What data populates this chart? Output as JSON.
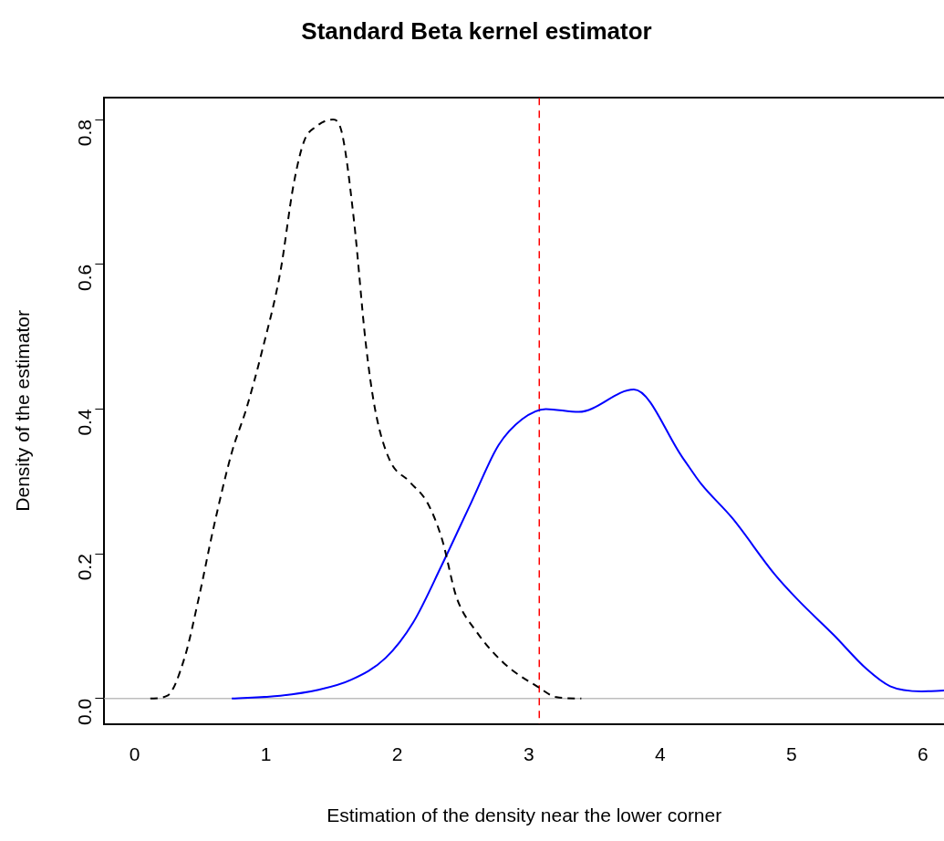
{
  "chart_data": {
    "type": "line",
    "title": "Standard Beta kernel estimator",
    "xlabel": "Estimation of the density near the lower corner",
    "ylabel": "Density of the estimator",
    "xlim": [
      -0.23,
      6.16
    ],
    "ylim": [
      -0.035,
      0.83
    ],
    "xticks": [
      0,
      1,
      2,
      3,
      4,
      5,
      6
    ],
    "yticks": [
      {
        "value": 0,
        "label": "0.0"
      },
      0.2,
      0.4,
      0.6,
      0.8
    ],
    "grid": false,
    "legend": false,
    "marker": "none",
    "series": [
      {
        "color": "#000000",
        "line_style": "dashed",
        "x": [
          0.12,
          0.25,
          0.38,
          0.49,
          0.6,
          0.74,
          0.85,
          0.97,
          1.11,
          1.21,
          1.29,
          1.38,
          1.51,
          1.58,
          1.67,
          1.76,
          1.83,
          1.94,
          2.09,
          2.23,
          2.34,
          2.45,
          2.6,
          2.81,
          3.07,
          3.21,
          3.4
        ],
        "values": [
          0,
          0.004,
          0.056,
          0.14,
          0.235,
          0.34,
          0.4,
          0.48,
          0.59,
          0.71,
          0.77,
          0.79,
          0.8,
          0.78,
          0.66,
          0.49,
          0.4,
          0.33,
          0.3,
          0.27,
          0.22,
          0.14,
          0.093,
          0.049,
          0.016,
          0.002,
          0
        ]
      },
      {
        "color": "#0000ff",
        "line_style": "solid",
        "x": [
          0.74,
          1.11,
          1.4,
          1.65,
          1.91,
          2.12,
          2.34,
          2.56,
          2.77,
          2.95,
          3.13,
          3.38,
          3.8,
          4.17,
          4.31,
          4.55,
          4.87,
          5.05,
          5.32,
          5.57,
          5.75,
          5.99,
          6.16
        ],
        "values": [
          0,
          0.004,
          0.012,
          0.026,
          0.056,
          0.105,
          0.185,
          0.27,
          0.35,
          0.386,
          0.4,
          0.396,
          0.427,
          0.333,
          0.297,
          0.249,
          0.172,
          0.136,
          0.088,
          0.041,
          0.017,
          0.01,
          0.011
        ]
      }
    ],
    "ref_lines": [
      {
        "axis": "y",
        "value": 0,
        "color": "#bebebe",
        "line_style": "solid"
      },
      {
        "axis": "x",
        "value": 3.08,
        "color": "#ff0000",
        "line_style": "dashed"
      }
    ]
  }
}
